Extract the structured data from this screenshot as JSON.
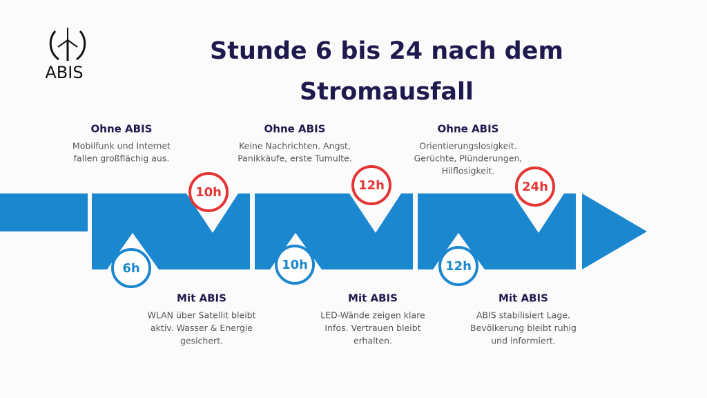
{
  "logo": {
    "text": "ABIS"
  },
  "title": {
    "lines": [
      "Stunde 6 bis 24 nach dem",
      "Stromausfall"
    ]
  },
  "steps": [
    {
      "ohne": {
        "time": "10h",
        "heading": "Ohne ABIS",
        "lines": [
          "Mobilfunk und Internet",
          "fallen großflächig aus."
        ]
      },
      "mit": {
        "time": "6h",
        "heading": "Mit ABIS",
        "lines": [
          "WLAN über Satellit bleibt",
          "aktiv. Wasser & Energie",
          "gesichert."
        ]
      }
    },
    {
      "ohne": {
        "time": "12h",
        "heading": "Ohne ABIS",
        "lines": [
          "Keine Nachrichten. Angst,",
          "Panikkäufe, erste Tumulte."
        ]
      },
      "mit": {
        "time": "10h",
        "heading": "Mit ABIS",
        "lines": [
          "LED-Wände zeigen klare",
          "Infos. Vertrauen bleibt",
          "erhalten."
        ]
      }
    },
    {
      "ohne": {
        "time": "24h",
        "heading": "Ohne ABIS",
        "lines": [
          "Orientierungslosigkeit.",
          "Gerüchte, Plünderungen,",
          "Hilflosigkeit."
        ]
      },
      "mit": {
        "time": "12h",
        "heading": "Mit ABIS",
        "lines": [
          "ABIS stabilisiert Lage.",
          "Bevölkerung bleibt ruhig",
          "und informiert."
        ]
      }
    }
  ]
}
